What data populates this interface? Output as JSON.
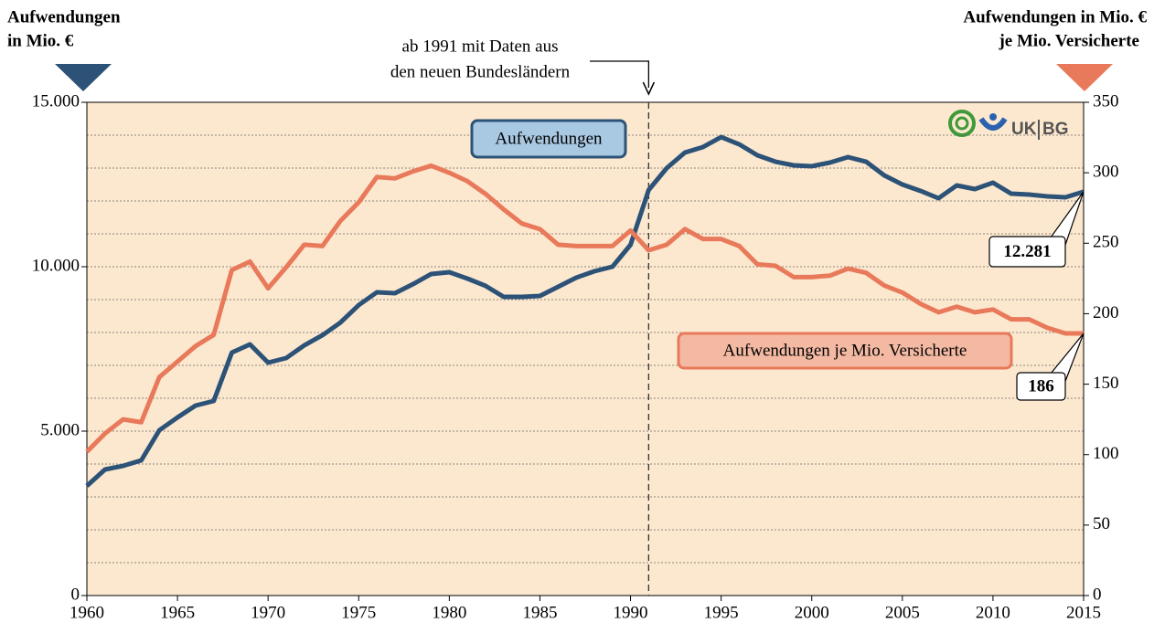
{
  "chart_data": {
    "type": "line",
    "y_label": [
      "Aufwendungen",
      "in Mio. €"
    ],
    "y2_label": [
      "Aufwendungen in Mio. €",
      "je Mio. Versicherte"
    ],
    "annotation": {
      "text": [
        "ab 1991 mit Daten aus",
        "den neuen Bundesländern"
      ],
      "x": 1991
    },
    "logo": [
      "UK",
      "BG"
    ],
    "x": [
      1960,
      1961,
      1962,
      1963,
      1964,
      1965,
      1966,
      1967,
      1968,
      1969,
      1970,
      1971,
      1972,
      1973,
      1974,
      1975,
      1976,
      1977,
      1978,
      1979,
      1980,
      1981,
      1982,
      1983,
      1984,
      1985,
      1986,
      1987,
      1988,
      1989,
      1990,
      1991,
      1992,
      1993,
      1994,
      1995,
      1996,
      1997,
      1998,
      1999,
      2000,
      2001,
      2002,
      2003,
      2004,
      2005,
      2006,
      2007,
      2008,
      2009,
      2010,
      2011,
      2012,
      2013,
      2014,
      2015
    ],
    "series": [
      {
        "name": "Aufwendungen",
        "color": "#2c5277",
        "axis": "y",
        "values": [
          3333,
          3833,
          3944,
          4111,
          5028,
          5417,
          5778,
          5917,
          7389,
          7639,
          7083,
          7222,
          7611,
          7917,
          8306,
          8833,
          9222,
          9194,
          9472,
          9778,
          9833,
          9639,
          9417,
          9083,
          9083,
          9111,
          9389,
          9667,
          9861,
          10000,
          10667,
          12333,
          13000,
          13472,
          13639,
          13944,
          13722,
          13389,
          13194,
          13083,
          13056,
          13167,
          13333,
          13194,
          12778,
          12500,
          12306,
          12083,
          12472,
          12361,
          12556,
          12222,
          12194,
          12139,
          12111,
          12281
        ],
        "value_labels": [
          null,
          null,
          null,
          null,
          null,
          null,
          null,
          null,
          null,
          null,
          null,
          null,
          null,
          null,
          null,
          null,
          null,
          null,
          null,
          null,
          null,
          null,
          null,
          null,
          null,
          null,
          null,
          null,
          null,
          null,
          null,
          null,
          null,
          null,
          null,
          null,
          null,
          null,
          null,
          null,
          null,
          null,
          null,
          null,
          null,
          null,
          null,
          null,
          null,
          null,
          null,
          null,
          null,
          null,
          null,
          "12.281"
        ]
      },
      {
        "name": "Aufwendungen je Mio. Versicherte",
        "color": "#e8795a",
        "axis": "y2",
        "values": [
          102,
          115,
          125,
          123,
          155,
          166,
          177,
          185,
          231,
          237,
          218,
          233,
          249,
          248,
          266,
          279,
          297,
          296,
          301,
          305,
          300,
          294,
          285,
          274,
          264,
          260,
          249,
          248,
          248,
          248,
          259,
          245,
          249,
          260,
          253,
          253,
          248,
          235,
          234,
          226,
          226,
          227,
          232,
          229,
          220,
          215,
          207,
          201,
          205,
          201,
          203,
          196,
          196,
          190,
          186,
          186
        ]
      }
    ],
    "xlim": [
      1960,
      2015
    ],
    "xticks": [
      1960,
      1965,
      1970,
      1975,
      1980,
      1985,
      1990,
      1995,
      2000,
      2005,
      2010,
      2015
    ],
    "ylim": [
      0,
      15000
    ],
    "yticks": [
      0,
      {
        "value": 5000,
        "label": "5.000"
      },
      {
        "value": 10000,
        "label": "10.000"
      },
      {
        "value": 15000,
        "label": "15.000"
      }
    ],
    "ygrid": [
      1000,
      2000,
      3000,
      4000,
      5000,
      6000,
      7000,
      8000,
      9000,
      10000,
      11000,
      12000,
      13000,
      14000
    ],
    "y2lim": [
      0,
      350
    ],
    "y2ticks": [
      0,
      50,
      100,
      150,
      200,
      250,
      300,
      350
    ]
  }
}
